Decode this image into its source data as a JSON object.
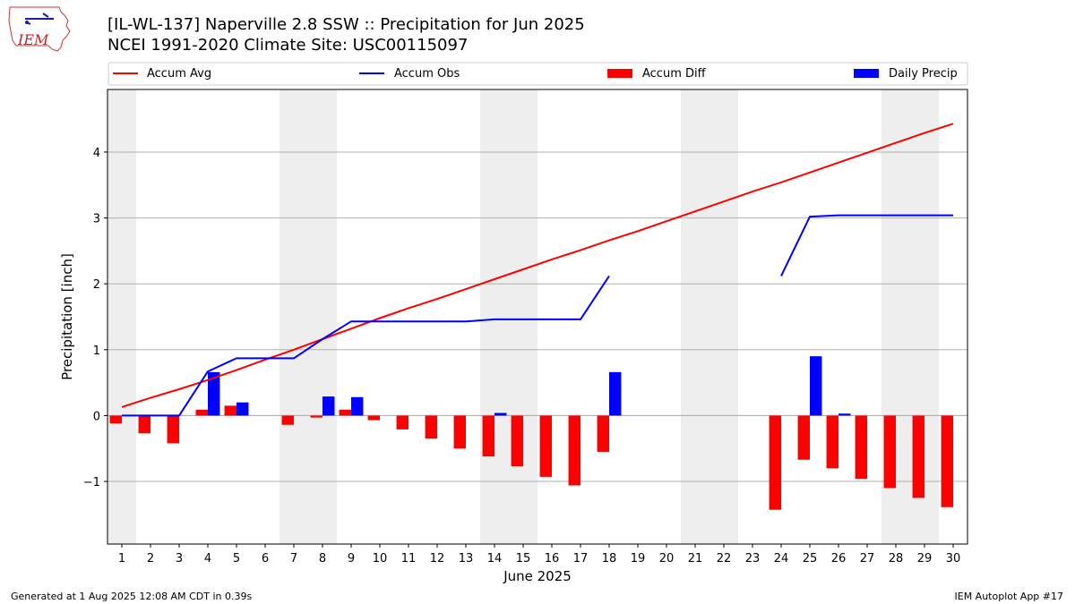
{
  "header": {
    "title_line1": "[IL-WL-137] Naperville 2.8 SSW :: Precipitation for Jun 2025",
    "title_line2": "NCEI 1991-2020 Climate Site: USC00115097",
    "logo_text": "IEM"
  },
  "footer": {
    "generated": "Generated at 1 Aug 2025 12:08 AM CDT in 0.39s",
    "app": "IEM Autoplot App #17"
  },
  "chart_data": {
    "type": "bar",
    "title": "[IL-WL-137] Naperville 2.8 SSW :: Precipitation for Jun 2025",
    "subtitle": "NCEI 1991-2020 Climate Site: USC00115097",
    "xlabel": "June 2025",
    "ylabel": "Precipitation [inch]",
    "ylim": [
      -1.95,
      4.95
    ],
    "yticks": [
      -1,
      0,
      1,
      2,
      3,
      4
    ],
    "ytick_labels": [
      "−1",
      "0",
      "1",
      "2",
      "3",
      "4"
    ],
    "xlim": [
      0.5,
      30.5
    ],
    "x": [
      1,
      2,
      3,
      4,
      5,
      6,
      7,
      8,
      9,
      10,
      11,
      12,
      13,
      14,
      15,
      16,
      17,
      18,
      19,
      20,
      21,
      22,
      23,
      24,
      25,
      26,
      27,
      28,
      29,
      30
    ],
    "weekend_days": [
      1,
      7,
      8,
      14,
      15,
      21,
      22,
      28,
      29
    ],
    "grid": "horizontal",
    "legend_position": "top",
    "colors": {
      "accum_avg": "#ff0000",
      "accum_obs": "#0000ff",
      "accum_diff": "#ff0000",
      "daily_precip": "#0000ff",
      "weekend_shade": "#eeeeee",
      "grid": "#b0b0b0"
    },
    "series": [
      {
        "name": "Accum Avg",
        "kind": "line",
        "values": [
          0.13,
          0.27,
          0.4,
          0.54,
          0.69,
          0.85,
          1.0,
          1.16,
          1.32,
          1.48,
          1.63,
          1.77,
          1.92,
          2.07,
          2.22,
          2.37,
          2.51,
          2.66,
          2.8,
          2.95,
          3.1,
          3.25,
          3.4,
          3.54,
          3.69,
          3.84,
          3.99,
          4.14,
          4.29,
          4.43
        ]
      },
      {
        "name": "Accum Obs",
        "kind": "line",
        "values": [
          0.0,
          0.0,
          0.0,
          0.67,
          0.87,
          0.87,
          0.87,
          1.16,
          1.43,
          1.43,
          1.43,
          1.43,
          1.43,
          1.46,
          1.46,
          1.46,
          1.46,
          2.12,
          null,
          null,
          null,
          null,
          null,
          2.12,
          3.02,
          3.04,
          3.04,
          3.04,
          3.04,
          3.04
        ]
      },
      {
        "name": "Accum Diff",
        "kind": "bar",
        "values": [
          -0.12,
          -0.27,
          -0.42,
          0.09,
          0.15,
          null,
          -0.14,
          -0.03,
          0.09,
          -0.07,
          -0.21,
          -0.35,
          -0.5,
          -0.62,
          -0.77,
          -0.93,
          -1.06,
          -0.55,
          null,
          null,
          null,
          null,
          null,
          -1.43,
          -0.67,
          -0.8,
          -0.96,
          -1.1,
          -1.25,
          -1.39
        ]
      },
      {
        "name": "Daily Precip",
        "kind": "bar",
        "values": [
          0,
          0,
          0,
          0.66,
          0.2,
          0,
          0,
          0.29,
          0.28,
          0,
          0,
          0,
          0,
          0.04,
          0,
          0,
          0,
          0.66,
          null,
          null,
          null,
          null,
          null,
          0,
          0.9,
          0.03,
          0,
          0,
          0,
          0
        ]
      }
    ]
  }
}
